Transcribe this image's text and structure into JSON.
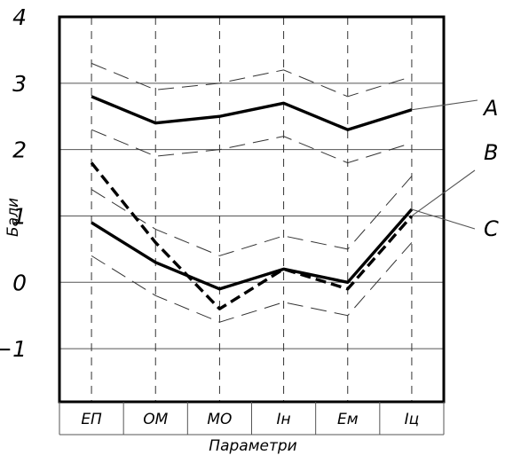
{
  "chart_data": {
    "type": "line",
    "title": "",
    "xlabel": "Параметри",
    "ylabel": "Бали",
    "categories": [
      "ЕП",
      "ОМ",
      "МО",
      "Ін",
      "Ем",
      "Іц"
    ],
    "ylim": [
      -1.8,
      4
    ],
    "yticks": [
      -1,
      0,
      1,
      2,
      3,
      4
    ],
    "ytick_labels": [
      "−1",
      "0",
      "1",
      "2",
      "3",
      "4"
    ],
    "grid": true,
    "series": [
      {
        "name": "A",
        "style": "solid-bold",
        "values": [
          2.8,
          2.4,
          2.5,
          2.7,
          2.3,
          2.6
        ],
        "band_upper": [
          3.3,
          2.9,
          3.0,
          3.2,
          2.8,
          3.1
        ],
        "band_lower": [
          2.3,
          1.9,
          2.0,
          2.2,
          1.8,
          2.1
        ]
      },
      {
        "name": "B",
        "style": "dashed-bold",
        "values": [
          1.8,
          0.6,
          -0.4,
          0.2,
          -0.1,
          1.0
        ]
      },
      {
        "name": "C",
        "style": "solid-bold",
        "values": [
          0.9,
          0.3,
          -0.1,
          0.2,
          0.0,
          1.1
        ],
        "band_upper": [
          1.4,
          0.8,
          0.4,
          0.7,
          0.5,
          1.6
        ],
        "band_lower": [
          0.4,
          -0.2,
          -0.6,
          -0.3,
          -0.5,
          0.6
        ]
      }
    ]
  }
}
